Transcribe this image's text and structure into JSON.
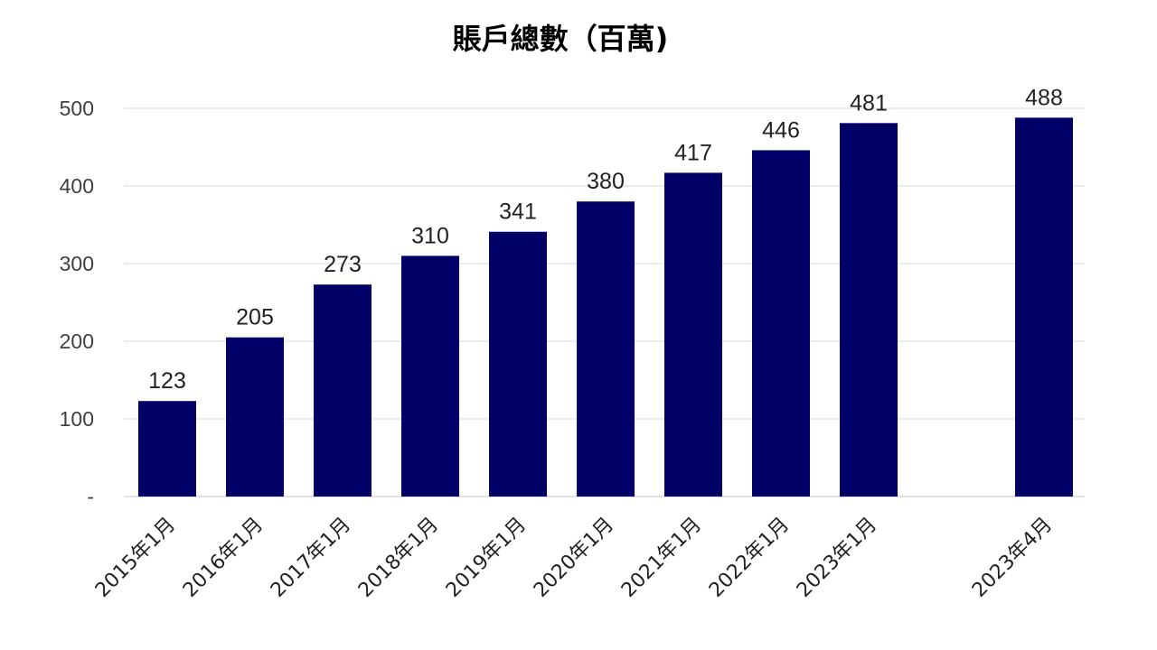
{
  "chart_data": {
    "type": "bar",
    "title": "賬戶總數（百萬)",
    "categories": [
      "2015年1月",
      "2016年1月",
      "2017年1月",
      "2018年1月",
      "2019年1月",
      "2020年1月",
      "2021年1月",
      "2022年1月",
      "2023年1月",
      "",
      "2023年4月"
    ],
    "values": [
      123,
      205,
      273,
      310,
      341,
      380,
      417,
      446,
      481,
      null,
      488
    ],
    "data_labels": [
      "123",
      "205",
      "273",
      "310",
      "341",
      "380",
      "417",
      "446",
      "481",
      "",
      "488"
    ],
    "y_ticks": [
      "-",
      "100",
      "200",
      "300",
      "400",
      "500"
    ],
    "ylim": [
      0,
      500
    ],
    "grid": true,
    "legend": "none",
    "colors": {
      "bar": "#000066",
      "grid": "#d9d9d9"
    }
  }
}
